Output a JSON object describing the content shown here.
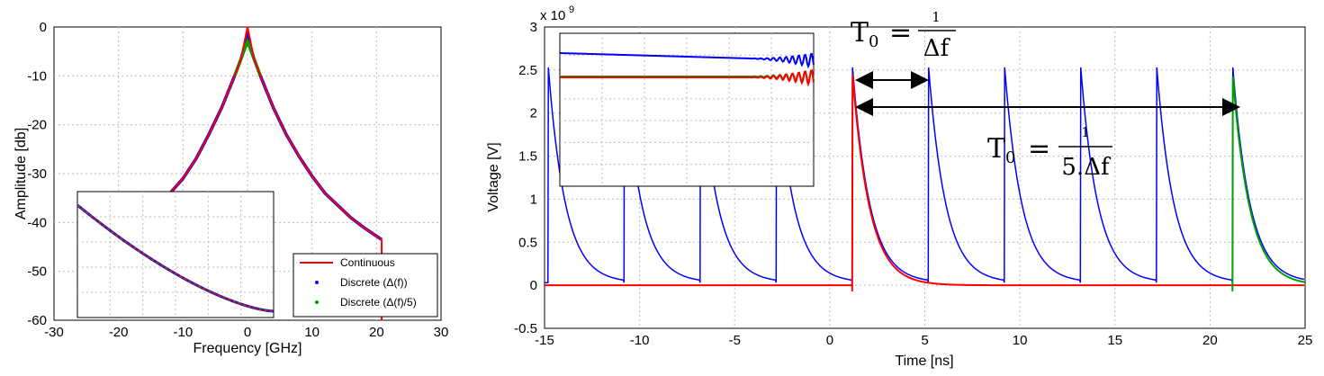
{
  "chart_data": [
    {
      "type": "line",
      "xlabel": "Frequency [GHz]",
      "ylabel": "Amplitude [db]",
      "xlim": [
        -30,
        30
      ],
      "ylim": [
        -60,
        0
      ],
      "xticks": [
        "-30",
        "-20",
        "-10",
        "0",
        "10",
        "20",
        "30"
      ],
      "yticks": [
        "0",
        "-10",
        "-20",
        "-30",
        "-40",
        "-50",
        "-60"
      ],
      "grid": true,
      "legend_position": "bottom-right",
      "legend": [
        "Continuous",
        "Discrete (Δ(f))",
        "Discrete (Δ(f)/5)"
      ],
      "colors": {
        "continuous": "#ff0000",
        "discrete_df": "#0000ff",
        "discrete_df5": "#00a000"
      },
      "series": [
        {
          "name": "Continuous",
          "x": [
            -12,
            -10,
            -8,
            -6,
            -4,
            -2,
            -1,
            0,
            1,
            2,
            4,
            6,
            8,
            10,
            12,
            14,
            16,
            18,
            20,
            20.8
          ],
          "y": [
            -34.0,
            -31.0,
            -27.0,
            -22.0,
            -16.5,
            -10.0,
            -6.5,
            0,
            -6.5,
            -10.0,
            -16.5,
            -22.0,
            -26.5,
            -30.5,
            -34.0,
            -36.5,
            -39.0,
            -41.0,
            -42.8,
            -43.5
          ]
        },
        {
          "name": "Discrete (Δ(f))",
          "x": [
            -12,
            -10,
            -8,
            -6,
            -4,
            -2,
            -1,
            0,
            1,
            2,
            4,
            6,
            8,
            10,
            12,
            14,
            16,
            18,
            20,
            20.8
          ],
          "y": [
            -34.0,
            -31.0,
            -27.0,
            -22.0,
            -16.5,
            -10.0,
            -6.5,
            -2.0,
            -6.5,
            -10.0,
            -16.5,
            -22.0,
            -26.5,
            -30.5,
            -34.0,
            -36.5,
            -39.0,
            -41.0,
            -42.8,
            -43.5
          ]
        },
        {
          "name": "Discrete (Δ(f)/5)",
          "x": [
            -2,
            -1,
            0,
            1,
            2
          ],
          "y": [
            -10.0,
            -6.5,
            -3.0,
            -6.5,
            -10.0
          ]
        }
      ]
    },
    {
      "type": "line",
      "xlabel": "Time [ns]",
      "ylabel": "Voltage [V]",
      "y_multiplier": "x 10",
      "y_multiplier_exp": "9",
      "xlim": [
        -15,
        25
      ],
      "ylim": [
        -0.5,
        3
      ],
      "xticks": [
        "-15",
        "-10",
        "-5",
        "0",
        "5",
        "10",
        "15",
        "20",
        "25"
      ],
      "yticks": [
        "3",
        "2.5",
        "2",
        "1.5",
        "1",
        "0.5",
        "0",
        "-0.5"
      ],
      "grid": true,
      "colors": {
        "blue": "#0000ff",
        "red": "#ff0000",
        "green": "#00a000"
      },
      "blue_peaks_ns": [
        -14.8,
        -10.8,
        -6.8,
        -2.8,
        1.2,
        5.2,
        9.2,
        13.2,
        17.2,
        21.2
      ],
      "red_peak_ns": 1.2,
      "green_peak_ns": 21.2,
      "peak_value": 2.5,
      "annotations": {
        "t0_symbol": "T",
        "t0_sub": "0",
        "eq": "=",
        "num": "1",
        "den1": "Δf",
        "den2": "5.Δf"
      }
    }
  ]
}
